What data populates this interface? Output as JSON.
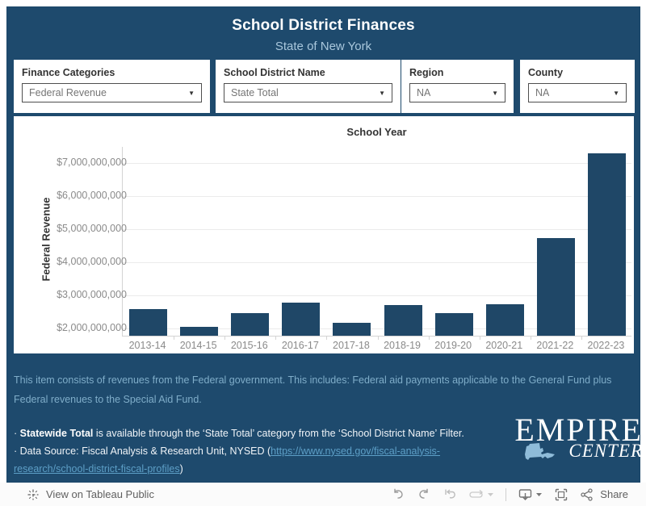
{
  "header": {
    "title": "School District Finances",
    "subtitle": "State of New York"
  },
  "filters": [
    {
      "label": "Finance Categories",
      "value": "Federal Revenue"
    },
    {
      "label": "School District Name",
      "value": "State Total"
    },
    {
      "label": "Region",
      "value": "NA"
    },
    {
      "label": "County",
      "value": "NA"
    }
  ],
  "chart_data": {
    "type": "bar",
    "title": "School Year",
    "ylabel": "Federal Revenue",
    "categories": [
      "2013-14",
      "2014-15",
      "2015-16",
      "2016-17",
      "2017-18",
      "2018-19",
      "2019-20",
      "2020-21",
      "2021-22",
      "2022-23"
    ],
    "values": [
      2550000000,
      2030000000,
      2440000000,
      2760000000,
      2130000000,
      2680000000,
      2440000000,
      2700000000,
      4700000000,
      7260000000
    ],
    "y_tick_values": [
      2000000000,
      3000000000,
      4000000000,
      5000000000,
      6000000000,
      7000000000
    ],
    "y_tick_labels": [
      "$2,000,000,000",
      "$3,000,000,000",
      "$4,000,000,000",
      "$5,000,000,000",
      "$6,000,000,000",
      "$7,000,000,000"
    ],
    "ylim": [
      1750000000,
      7480000000
    ],
    "grid": true,
    "legend": "none",
    "bar_color": "#1f4767"
  },
  "description": "This item consists of revenues from the Federal government. This includes: Federal aid payments applicable to the General Fund plus Federal revenues to the Special Aid Fund.",
  "footnotes": {
    "bullet1": "· ",
    "note1_bold": "Statewide Total",
    "note1_rest": " is available through the ‘State Total’ category from the ‘School District Name’ Filter.",
    "bullet2": "· ",
    "note2_pre": "Data Source: Fiscal Analysis & Research Unit, NYSED (",
    "note2_link": "https://www.nysed.gov/fiscal-analysis-research/school-district-fiscal-profiles",
    "note2_post": ")"
  },
  "logo": {
    "line1": "EMPIRE",
    "line2": "CENTER"
  },
  "toolbar": {
    "view_text": "View on Tableau Public",
    "share_label": "Share"
  },
  "colors": {
    "dashboard_bg": "#1e4a6d",
    "bar": "#1f4767",
    "subtitle": "#a9c7dc",
    "description_text": "#7fadc9",
    "link": "#5d9fc7"
  }
}
